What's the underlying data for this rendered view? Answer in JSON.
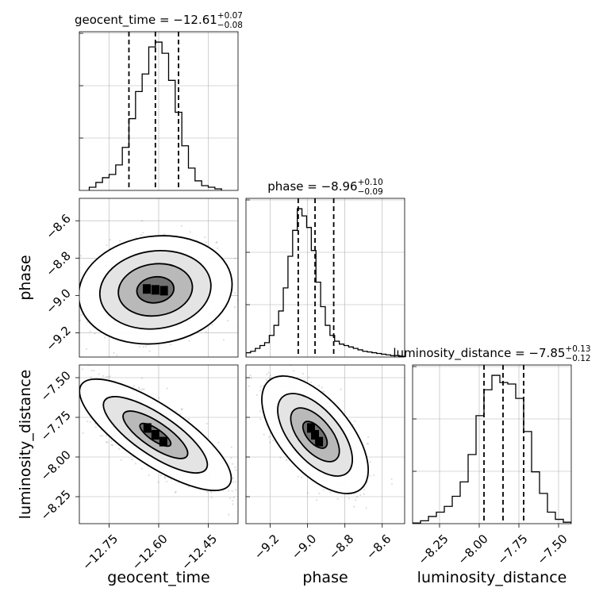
{
  "chart_data": {
    "type": "corner",
    "grid": true,
    "parameters": [
      {
        "name": "geocent_time",
        "label": "geocent_time",
        "median": "−12.61",
        "plus": "+0.07",
        "minus": "−0.08",
        "quantiles": [
          -12.69,
          -12.61,
          -12.54
        ],
        "range": [
          -12.84,
          -12.36
        ],
        "ticks": [
          -12.75,
          -12.6,
          -12.45
        ],
        "tick_labels": [
          "−12.75",
          "−12.60",
          "−12.45"
        ],
        "hist_bins": [
          -12.81,
          -12.79,
          -12.77,
          -12.75,
          -12.73,
          -12.71,
          -12.69,
          -12.67,
          -12.65,
          -12.63,
          -12.61,
          -12.59,
          -12.57,
          -12.55,
          -12.53,
          -12.51,
          -12.49,
          -12.47,
          -12.45,
          -12.43,
          -12.41
        ],
        "hist_counts": [
          0.2,
          0.5,
          0.8,
          1.0,
          1.6,
          2.7,
          4.5,
          6.2,
          7.3,
          9.0,
          9.3,
          8.6,
          6.9,
          4.9,
          2.8,
          1.4,
          0.6,
          0.3,
          0.2,
          0.1
        ]
      },
      {
        "name": "phase",
        "label": "phase",
        "median": "−8.96",
        "plus": "+0.10",
        "minus": "−0.09",
        "quantiles": [
          -9.05,
          -8.96,
          -8.86
        ],
        "range": [
          -9.33,
          -8.48
        ],
        "ticks": [
          -9.2,
          -9.0,
          -8.8,
          -8.6
        ],
        "tick_labels": [
          "−9.2",
          "−9.0",
          "−8.8",
          "−8.6"
        ],
        "hist_bins": [
          -9.33,
          -9.305,
          -9.28,
          -9.255,
          -9.23,
          -9.205,
          -9.18,
          -9.155,
          -9.13,
          -9.105,
          -9.08,
          -9.055,
          -9.03,
          -9.005,
          -8.98,
          -8.955,
          -8.93,
          -8.905,
          -8.88,
          -8.855,
          -8.83,
          -8.805,
          -8.78,
          -8.755,
          -8.73,
          -8.705,
          -8.68,
          -8.655,
          -8.63,
          -8.605,
          -8.58,
          -8.555,
          -8.53,
          -8.505,
          -8.48
        ],
        "hist_counts": [
          0.3,
          0.4,
          0.6,
          0.8,
          1.0,
          1.5,
          2.2,
          3.2,
          4.8,
          7.0,
          8.8,
          10.3,
          9.8,
          9.0,
          7.4,
          5.2,
          3.5,
          2.2,
          1.5,
          1.1,
          0.9,
          0.8,
          0.7,
          0.6,
          0.5,
          0.4,
          0.35,
          0.3,
          0.25,
          0.2,
          0.15,
          0.1,
          0.1,
          0.05
        ]
      },
      {
        "name": "luminosity_distance",
        "label": "luminosity_distance",
        "median": "−7.85",
        "plus": "+0.13",
        "minus": "−0.12",
        "quantiles": [
          -7.97,
          -7.85,
          -7.72
        ],
        "range": [
          -8.42,
          -7.42
        ],
        "ticks": [
          -8.25,
          -8.0,
          -7.75,
          -7.5
        ],
        "tick_labels": [
          "−8.25",
          "−8.00",
          "−7.75",
          "−7.50"
        ],
        "hist_bins": [
          -8.42,
          -8.37,
          -8.32,
          -8.27,
          -8.22,
          -8.17,
          -8.12,
          -8.07,
          -8.02,
          -7.97,
          -7.92,
          -7.87,
          -7.82,
          -7.77,
          -7.72,
          -7.67,
          -7.62,
          -7.57,
          -7.52,
          -7.47,
          -7.42
        ],
        "hist_counts": [
          0.05,
          0.2,
          0.5,
          0.8,
          1.2,
          1.9,
          2.9,
          4.8,
          7.5,
          9.3,
          10.3,
          9.8,
          9.7,
          8.7,
          6.4,
          3.6,
          2.1,
          0.8,
          0.3,
          0.1
        ]
      }
    ],
    "pairs": [
      {
        "x": "geocent_time",
        "y": "phase",
        "center": [
          -12.61,
          -8.97
        ],
        "sigma": [
          0.08,
          0.1
        ],
        "rho": 0.1,
        "contour_scales": [
          0.7,
          1.4,
          2.1,
          2.9
        ]
      },
      {
        "x": "geocent_time",
        "y": "luminosity_distance",
        "center": [
          -12.61,
          -7.86
        ],
        "sigma": [
          0.085,
          0.13
        ],
        "rho": -0.78,
        "contour_scales": [
          0.55,
          1.15,
          1.85,
          2.7
        ]
      },
      {
        "x": "phase",
        "y": "luminosity_distance",
        "center": [
          -8.96,
          -7.86
        ],
        "sigma": [
          0.1,
          0.13
        ],
        "rho": -0.6,
        "contour_scales": [
          0.65,
          1.3,
          2.0,
          2.85
        ]
      }
    ]
  }
}
